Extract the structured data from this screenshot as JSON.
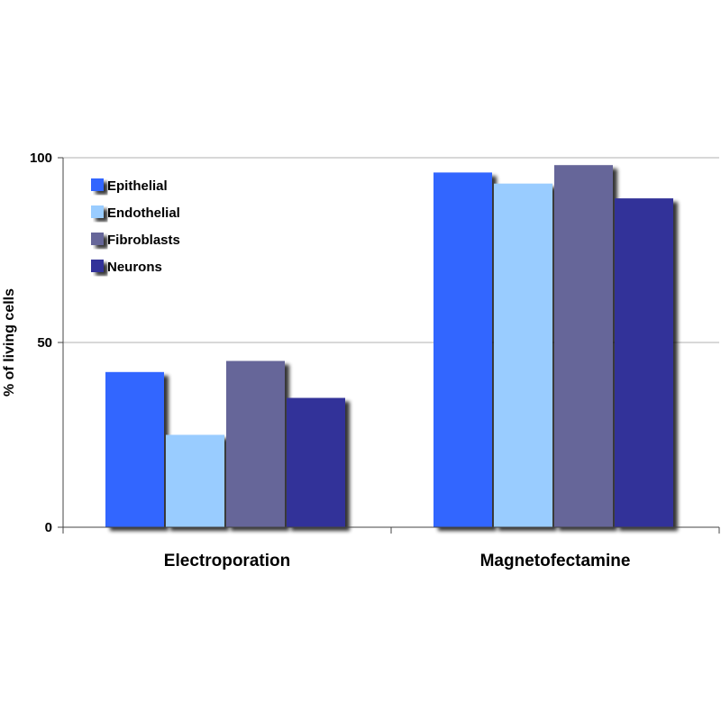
{
  "chart_data": {
    "type": "bar",
    "title": "",
    "xlabel": "",
    "ylabel": "% of living cells",
    "ylim": [
      0,
      100
    ],
    "yticks": [
      "0",
      "50",
      "100"
    ],
    "grid": true,
    "legend_position": "top-left",
    "categories": [
      "Electroporation",
      "Magnetofectamine"
    ],
    "series": [
      {
        "name": "Epithelial",
        "color": "#3366ff",
        "values": [
          42,
          96
        ]
      },
      {
        "name": "Endothelial",
        "color": "#99ccff",
        "values": [
          25,
          93
        ]
      },
      {
        "name": "Fibroblasts",
        "color": "#666699",
        "values": [
          45,
          98
        ]
      },
      {
        "name": "Neurons",
        "color": "#333399",
        "values": [
          35,
          89
        ]
      }
    ]
  }
}
